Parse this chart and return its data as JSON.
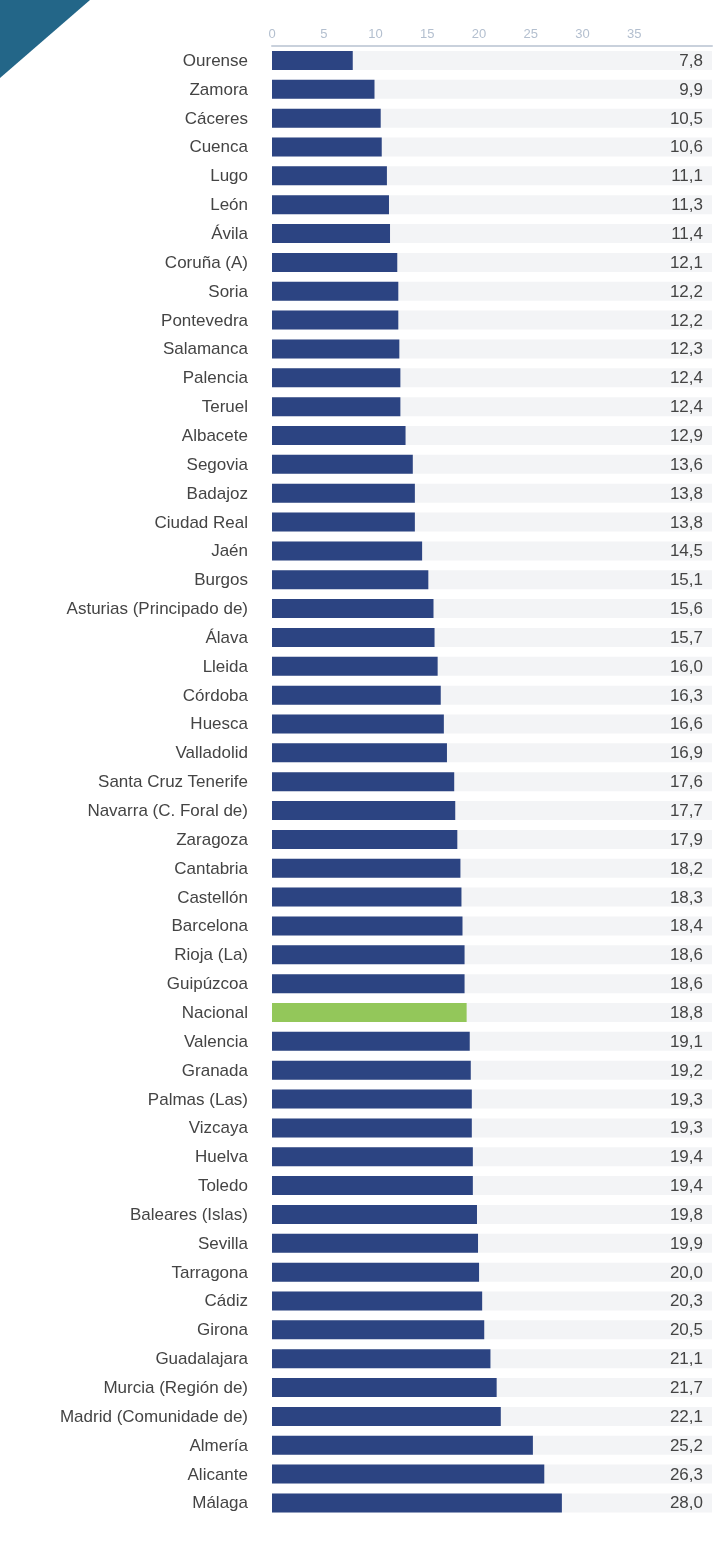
{
  "chart_data": {
    "type": "bar",
    "orientation": "horizontal",
    "categories": [
      "Ourense",
      "Zamora",
      "Cáceres",
      "Cuenca",
      "Lugo",
      "León",
      "Ávila",
      "Coruña (A)",
      "Soria",
      "Pontevedra",
      "Salamanca",
      "Palencia",
      "Teruel",
      "Albacete",
      "Segovia",
      "Badajoz",
      "Ciudad Real",
      "Jaén",
      "Burgos",
      "Asturias (Principado de)",
      "Álava",
      "Lleida",
      "Córdoba",
      "Huesca",
      "Valladolid",
      "Santa Cruz Tenerife",
      "Navarra (C. Foral de)",
      "Zaragoza",
      "Cantabria",
      "Castellón",
      "Barcelona",
      "Rioja (La)",
      "Guipúzcoa",
      "Nacional",
      "Valencia",
      "Granada",
      "Palmas (Las)",
      "Vizcaya",
      "Huelva",
      "Toledo",
      "Baleares (Islas)",
      "Sevilla",
      "Tarragona",
      "Cádiz",
      "Girona",
      "Guadalajara",
      "Murcia (Región de)",
      "Madrid (Comunidade de)",
      "Almería",
      "Alicante",
      "Málaga"
    ],
    "values": [
      7.8,
      9.9,
      10.5,
      10.6,
      11.1,
      11.3,
      11.4,
      12.1,
      12.2,
      12.2,
      12.3,
      12.4,
      12.4,
      12.9,
      13.6,
      13.8,
      13.8,
      14.5,
      15.1,
      15.6,
      15.7,
      16.0,
      16.3,
      16.6,
      16.9,
      17.6,
      17.7,
      17.9,
      18.2,
      18.3,
      18.4,
      18.6,
      18.6,
      18.8,
      19.1,
      19.2,
      19.3,
      19.3,
      19.4,
      19.4,
      19.8,
      19.9,
      20.0,
      20.3,
      20.5,
      21.1,
      21.7,
      22.1,
      25.2,
      26.3,
      28.0
    ],
    "value_labels": [
      "7,8",
      "9,9",
      "10,5",
      "10,6",
      "11,1",
      "11,3",
      "11,4",
      "12,1",
      "12,2",
      "12,2",
      "12,3",
      "12,4",
      "12,4",
      "12,9",
      "13,6",
      "13,8",
      "13,8",
      "14,5",
      "15,1",
      "15,6",
      "15,7",
      "16,0",
      "16,3",
      "16,6",
      "16,9",
      "17,6",
      "17,7",
      "17,9",
      "18,2",
      "18,3",
      "18,4",
      "18,6",
      "18,6",
      "18,8",
      "19,1",
      "19,2",
      "19,3",
      "19,3",
      "19,4",
      "19,4",
      "19,8",
      "19,9",
      "20,0",
      "20,3",
      "20,5",
      "21,1",
      "21,7",
      "22,1",
      "25,2",
      "26,3",
      "28,0"
    ],
    "colors": [
      "#2c4482",
      "#2c4482",
      "#2c4482",
      "#2c4482",
      "#2c4482",
      "#2c4482",
      "#2c4482",
      "#2c4482",
      "#2c4482",
      "#2c4482",
      "#2c4482",
      "#2c4482",
      "#2c4482",
      "#2c4482",
      "#2c4482",
      "#2c4482",
      "#2c4482",
      "#2c4482",
      "#2c4482",
      "#2c4482",
      "#2c4482",
      "#2c4482",
      "#2c4482",
      "#2c4482",
      "#2c4482",
      "#2c4482",
      "#2c4482",
      "#2c4482",
      "#2c4482",
      "#2c4482",
      "#2c4482",
      "#2c4482",
      "#2c4482",
      "#93c75a",
      "#2c4482",
      "#2c4482",
      "#2c4482",
      "#2c4482",
      "#2c4482",
      "#2c4482",
      "#2c4482",
      "#2c4482",
      "#2c4482",
      "#2c4482",
      "#2c4482",
      "#2c4482",
      "#2c4482",
      "#2c4482",
      "#2c4482",
      "#2c4482",
      "#2c4482"
    ],
    "xlim": [
      0,
      42.5
    ],
    "xticks": [
      0,
      5,
      10,
      15,
      20,
      25,
      30,
      35
    ],
    "grid": false
  }
}
